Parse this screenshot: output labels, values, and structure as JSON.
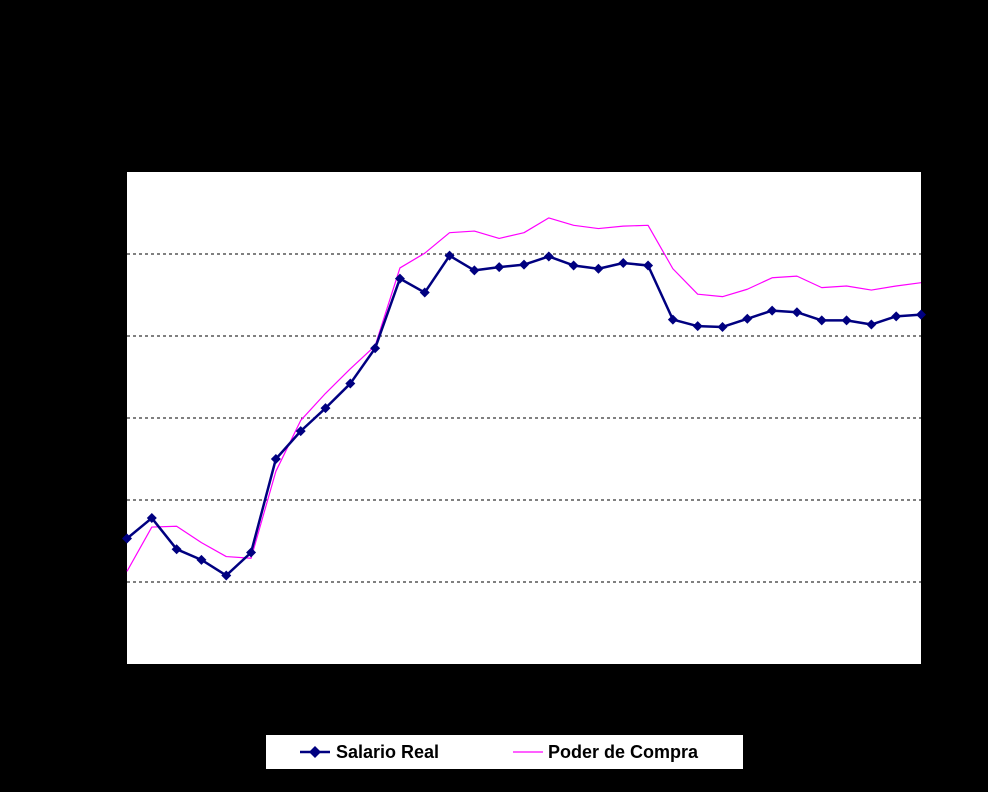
{
  "chart_data": {
    "type": "line",
    "title": "",
    "xlabel": "",
    "ylabel": "",
    "ylim": [
      0,
      6
    ],
    "grid": true,
    "legend_position": "bottom",
    "x": [
      1,
      2,
      3,
      4,
      5,
      6,
      7,
      8,
      9,
      10,
      11,
      12,
      13,
      14,
      15,
      16,
      17,
      18,
      19,
      20,
      21,
      22,
      23,
      24,
      25,
      26,
      27,
      28,
      29,
      30,
      31,
      32,
      33
    ],
    "series": [
      {
        "name": "Salario Real",
        "color": "#000080",
        "marker": "diamond",
        "values": [
          1.53,
          1.78,
          1.4,
          1.27,
          1.08,
          1.36,
          2.5,
          2.84,
          3.12,
          3.42,
          3.85,
          4.7,
          4.53,
          4.98,
          4.8,
          4.84,
          4.87,
          4.97,
          4.86,
          4.82,
          4.89,
          4.86,
          4.2,
          4.12,
          4.11,
          4.21,
          4.31,
          4.29,
          4.19,
          4.19,
          4.14,
          4.24,
          4.26
        ]
      },
      {
        "name": "Poder de Compra",
        "color": "#FF00FF",
        "marker": "none",
        "values": [
          1.13,
          1.67,
          1.68,
          1.48,
          1.31,
          1.29,
          2.35,
          2.97,
          3.3,
          3.6,
          3.88,
          4.83,
          5.01,
          5.26,
          5.28,
          5.19,
          5.26,
          5.44,
          5.35,
          5.31,
          5.34,
          5.35,
          4.82,
          4.51,
          4.48,
          4.57,
          4.71,
          4.73,
          4.59,
          4.61,
          4.56,
          4.61,
          4.65
        ]
      }
    ]
  }
}
